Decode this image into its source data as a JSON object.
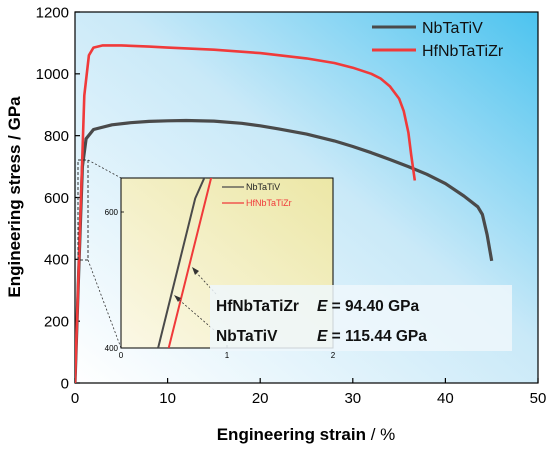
{
  "chart_data": [
    {
      "type": "line",
      "xlabel": "Engineering strain",
      "xlabel_unit": " / %",
      "ylabel": "Engineering stress",
      "ylabel_unit": " / GPa",
      "xlim": [
        0,
        50
      ],
      "ylim": [
        0,
        1200
      ],
      "xticks": [
        "0",
        "10",
        "20",
        "30",
        "40",
        "50"
      ],
      "yticks": [
        "0",
        "200",
        "400",
        "600",
        "800",
        "1000",
        "1200"
      ],
      "legend_position": "top-right",
      "series": [
        {
          "name": "NbTaTiV",
          "color": "#4a4a4a",
          "points": [
            [
              0,
              0
            ],
            [
              0.4,
              360
            ],
            [
              0.8,
              700
            ],
            [
              1.2,
              790
            ],
            [
              2,
              820
            ],
            [
              4,
              835
            ],
            [
              6,
              842
            ],
            [
              8,
              846
            ],
            [
              10,
              848
            ],
            [
              12,
              849
            ],
            [
              15,
              847
            ],
            [
              18,
              840
            ],
            [
              20,
              832
            ],
            [
              22,
              822
            ],
            [
              25,
              805
            ],
            [
              28,
              783
            ],
            [
              30,
              765
            ],
            [
              32,
              745
            ],
            [
              34,
              723
            ],
            [
              36,
              700
            ],
            [
              38,
              675
            ],
            [
              40,
              645
            ],
            [
              42,
              605
            ],
            [
              43.5,
              570
            ],
            [
              44,
              545
            ],
            [
              44.5,
              480
            ],
            [
              45,
              395
            ]
          ]
        },
        {
          "name": "HfNbTaTiZr",
          "color": "#f03a3a",
          "points": [
            [
              0,
              0
            ],
            [
              0.5,
              460
            ],
            [
              1,
              930
            ],
            [
              1.5,
              1060
            ],
            [
              2,
              1085
            ],
            [
              3,
              1092
            ],
            [
              5,
              1092
            ],
            [
              8,
              1088
            ],
            [
              10,
              1085
            ],
            [
              15,
              1078
            ],
            [
              20,
              1067
            ],
            [
              25,
              1050
            ],
            [
              28,
              1035
            ],
            [
              30,
              1020
            ],
            [
              32,
              1000
            ],
            [
              33,
              985
            ],
            [
              34,
              960
            ],
            [
              35,
              920
            ],
            [
              35.5,
              880
            ],
            [
              36,
              810
            ],
            [
              36.3,
              740
            ],
            [
              36.7,
              655
            ]
          ]
        }
      ]
    },
    {
      "type": "line",
      "role": "inset",
      "xlim": [
        0,
        2
      ],
      "ylim": [
        400,
        650
      ],
      "xticks": [
        "0",
        "1",
        "2"
      ],
      "yticks": [
        "400",
        "600"
      ],
      "legend_position": "top-right",
      "series": [
        {
          "name": "NbTaTiV",
          "color": "#4a4a4a",
          "points": [
            [
              0.35,
              400
            ],
            [
              0.7,
              620
            ],
            [
              0.8,
              655
            ]
          ]
        },
        {
          "name": "HfNbTaTiZr",
          "color": "#f03a3a",
          "points": [
            [
              0.45,
              400
            ],
            [
              0.85,
              650
            ],
            [
              0.88,
              655
            ]
          ]
        }
      ]
    }
  ],
  "annotations": {
    "line1_name": "HfNbTaTiZr",
    "line1_e": "E",
    "line1_value": " = 94.40 GPa",
    "line2_name": "NbTaTiV",
    "line2_e": "E",
    "line2_value": " = 115.44 GPa"
  }
}
